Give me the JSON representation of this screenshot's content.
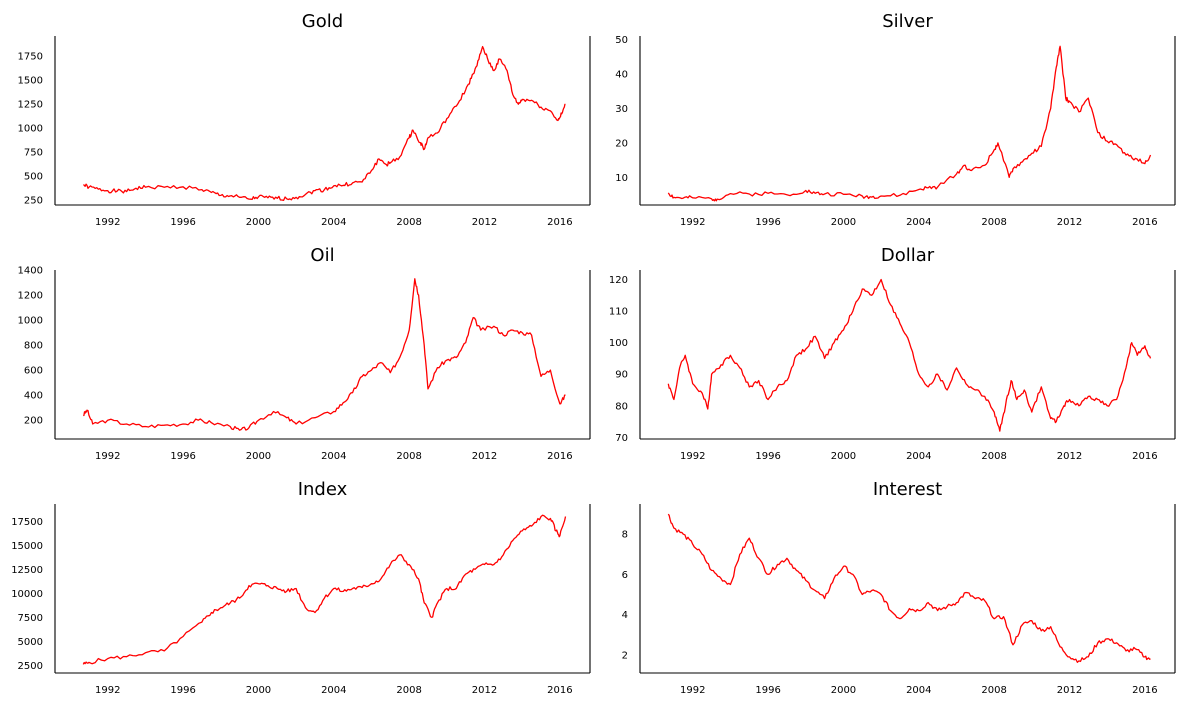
{
  "chart_data": [
    {
      "type": "line",
      "title": "Gold",
      "x_ticks": [
        "1992",
        "1996",
        "2000",
        "2004",
        "2008",
        "2012",
        "2016"
      ],
      "y_ticks": [
        "250",
        "500",
        "750",
        "1000",
        "1250",
        "1500",
        "1750"
      ],
      "xlim": [
        1989.2,
        2017.6
      ],
      "ylim": [
        200,
        1960
      ],
      "series": [
        {
          "color": "#ff0000",
          "x": [
            1990.7,
            1991.0,
            1991.5,
            1992.0,
            1992.5,
            1993.0,
            1993.5,
            1994.0,
            1995.0,
            1996.0,
            1997.0,
            1997.5,
            1998.0,
            1998.5,
            1999.0,
            1999.6,
            2000.0,
            2000.5,
            2001.0,
            2001.5,
            2002.0,
            2002.5,
            2003.0,
            2003.5,
            2004.0,
            2004.5,
            2005.0,
            2005.5,
            2006.0,
            2006.4,
            2006.8,
            2007.0,
            2007.5,
            2008.0,
            2008.2,
            2008.6,
            2008.8,
            2009.0,
            2009.5,
            2010.0,
            2010.5,
            2011.0,
            2011.3,
            2011.6,
            2011.9,
            2012.2,
            2012.5,
            2012.8,
            2013.2,
            2013.5,
            2013.8,
            2014.0,
            2014.5,
            2015.0,
            2015.5,
            2015.9,
            2016.1,
            2016.3
          ],
          "values": [
            410,
            385,
            365,
            350,
            345,
            340,
            375,
            385,
            385,
            390,
            360,
            330,
            300,
            295,
            280,
            260,
            285,
            275,
            270,
            265,
            280,
            310,
            350,
            360,
            400,
            405,
            430,
            440,
            560,
            680,
            620,
            640,
            700,
            900,
            980,
            850,
            780,
            900,
            950,
            1100,
            1230,
            1400,
            1520,
            1650,
            1850,
            1700,
            1600,
            1720,
            1600,
            1350,
            1250,
            1300,
            1290,
            1220,
            1180,
            1080,
            1150,
            1250
          ]
        }
      ]
    },
    {
      "type": "line",
      "title": "Silver",
      "x_ticks": [
        "1992",
        "1996",
        "2000",
        "2004",
        "2008",
        "2012",
        "2016"
      ],
      "y_ticks": [
        "10",
        "20",
        "30",
        "40",
        "50"
      ],
      "xlim": [
        1989.2,
        2017.6
      ],
      "ylim": [
        2,
        51
      ],
      "series": [
        {
          "color": "#ff0000",
          "x": [
            1990.7,
            1991.0,
            1991.5,
            1992.0,
            1993.0,
            1993.3,
            1994.0,
            1995.0,
            1996.0,
            1997.0,
            1998.0,
            1998.5,
            1999.0,
            2000.0,
            2001.0,
            2001.5,
            2002.0,
            2003.0,
            2004.0,
            2004.5,
            2005.0,
            2006.0,
            2006.4,
            2006.8,
            2007.5,
            2008.0,
            2008.2,
            2008.8,
            2009.0,
            2009.5,
            2010.0,
            2010.5,
            2011.0,
            2011.3,
            2011.5,
            2011.8,
            2012.0,
            2012.5,
            2013.0,
            2013.5,
            2014.0,
            2014.5,
            2015.0,
            2015.5,
            2016.0,
            2016.3
          ],
          "values": [
            5.5,
            4.2,
            4.0,
            4.1,
            3.8,
            3.7,
            5.3,
            5.2,
            5.4,
            5.0,
            6.2,
            5.4,
            5.2,
            5.1,
            4.6,
            4.3,
            4.6,
            4.8,
            6.5,
            7.0,
            7.2,
            11.0,
            13.5,
            12.0,
            13.5,
            18.0,
            20.0,
            10.0,
            12.5,
            14.5,
            17.0,
            19.0,
            30.0,
            42.0,
            48.0,
            33.0,
            32.0,
            29.0,
            33.0,
            23.0,
            20.5,
            19.5,
            16.5,
            15.5,
            14.0,
            16.5
          ]
        }
      ]
    },
    {
      "type": "line",
      "title": "Oil",
      "x_ticks": [
        "1992",
        "1996",
        "2000",
        "2004",
        "2008",
        "2012",
        "2016"
      ],
      "y_ticks": [
        "200",
        "400",
        "600",
        "800",
        "1000",
        "1200",
        "1400"
      ],
      "xlim": [
        1989.2,
        2017.6
      ],
      "ylim": [
        50,
        1400
      ],
      "series": [
        {
          "color": "#ff0000",
          "x": [
            1990.7,
            1990.9,
            1991.2,
            1992.0,
            1993.0,
            1994.0,
            1995.0,
            1996.0,
            1996.8,
            1997.5,
            1998.5,
            1999.0,
            1999.5,
            2000.0,
            2000.8,
            2001.5,
            2002.0,
            2003.0,
            2004.0,
            2004.5,
            2005.0,
            2005.5,
            2006.0,
            2006.5,
            2007.0,
            2007.5,
            2008.0,
            2008.3,
            2008.5,
            2008.8,
            2009.0,
            2009.5,
            2010.0,
            2010.5,
            2011.0,
            2011.4,
            2011.8,
            2012.5,
            2013.0,
            2013.5,
            2014.0,
            2014.5,
            2015.0,
            2015.5,
            2016.0,
            2016.3
          ],
          "values": [
            240,
            280,
            170,
            200,
            170,
            150,
            160,
            170,
            200,
            180,
            150,
            120,
            140,
            200,
            270,
            220,
            170,
            220,
            270,
            340,
            420,
            550,
            600,
            660,
            580,
            700,
            920,
            1330,
            1200,
            800,
            450,
            620,
            680,
            700,
            820,
            1020,
            920,
            950,
            880,
            920,
            900,
            880,
            550,
            600,
            330,
            400
          ]
        }
      ]
    },
    {
      "type": "line",
      "title": "Dollar",
      "x_ticks": [
        "1992",
        "1996",
        "2000",
        "2004",
        "2008",
        "2012",
        "2016"
      ],
      "y_ticks": [
        "70",
        "80",
        "90",
        "100",
        "110",
        "120"
      ],
      "xlim": [
        1989.2,
        2017.6
      ],
      "ylim": [
        69.5,
        123
      ],
      "series": [
        {
          "color": "#ff0000",
          "x": [
            1990.7,
            1991.0,
            1991.3,
            1991.6,
            1992.0,
            1992.5,
            1992.8,
            1993.0,
            1993.5,
            1994.0,
            1994.5,
            1995.0,
            1995.5,
            1996.0,
            1996.5,
            1997.0,
            1997.5,
            1998.0,
            1998.5,
            1999.0,
            1999.5,
            2000.0,
            2000.5,
            2001.0,
            2001.5,
            2002.0,
            2002.5,
            2003.0,
            2003.5,
            2004.0,
            2004.5,
            2005.0,
            2005.5,
            2006.0,
            2006.5,
            2007.0,
            2007.5,
            2008.0,
            2008.3,
            2008.6,
            2008.9,
            2009.2,
            2009.6,
            2010.0,
            2010.5,
            2011.0,
            2011.3,
            2011.7,
            2012.0,
            2012.5,
            2013.0,
            2013.5,
            2014.0,
            2014.5,
            2015.0,
            2015.3,
            2015.6,
            2016.0,
            2016.3
          ],
          "values": [
            87,
            82,
            92,
            96,
            87,
            84,
            79,
            90,
            93,
            96,
            92,
            86,
            88,
            82,
            86,
            88,
            96,
            98,
            102,
            95,
            100,
            104,
            110,
            117,
            115,
            120,
            112,
            106,
            100,
            90,
            86,
            90,
            85,
            92,
            87,
            85,
            83,
            78,
            72,
            80,
            88,
            82,
            85,
            78,
            86,
            76,
            75,
            80,
            82,
            80,
            83,
            82,
            80,
            82,
            92,
            100,
            96,
            99,
            95
          ]
        }
      ]
    },
    {
      "type": "line",
      "title": "Index",
      "x_ticks": [
        "1992",
        "1996",
        "2000",
        "2004",
        "2008",
        "2012",
        "2016"
      ],
      "y_ticks": [
        "2500",
        "5000",
        "7500",
        "10000",
        "12500",
        "15000",
        "17500"
      ],
      "xlim": [
        1989.2,
        2017.6
      ],
      "ylim": [
        1700,
        19300
      ],
      "series": [
        {
          "color": "#ff0000",
          "x": [
            1990.7,
            1991.0,
            1992.0,
            1993.0,
            1994.0,
            1995.0,
            1996.0,
            1997.0,
            1997.5,
            1998.0,
            1998.5,
            1999.0,
            1999.5,
            2000.0,
            2000.5,
            2001.0,
            2001.5,
            2002.0,
            2002.5,
            2003.0,
            2003.5,
            2004.0,
            2004.5,
            2005.0,
            2005.5,
            2006.0,
            2006.5,
            2007.0,
            2007.5,
            2008.0,
            2008.5,
            2008.8,
            2009.2,
            2009.5,
            2010.0,
            2010.5,
            2011.0,
            2011.5,
            2012.0,
            2012.5,
            2013.0,
            2013.5,
            2014.0,
            2014.5,
            2015.0,
            2015.5,
            2015.8,
            2016.0,
            2016.3
          ],
          "values": [
            2600,
            2800,
            3200,
            3400,
            3800,
            4000,
            5500,
            7000,
            8000,
            8500,
            9000,
            9500,
            10800,
            11000,
            10800,
            10500,
            10200,
            10500,
            8500,
            8000,
            9500,
            10500,
            10200,
            10500,
            10600,
            11000,
            11500,
            13000,
            14000,
            13000,
            11500,
            9000,
            7500,
            9000,
            10500,
            10500,
            12000,
            12500,
            13000,
            13000,
            14000,
            15500,
            16500,
            17000,
            18000,
            17800,
            16500,
            16000,
            18000
          ]
        }
      ]
    },
    {
      "type": "line",
      "title": "Interest",
      "x_ticks": [
        "1992",
        "1996",
        "2000",
        "2004",
        "2008",
        "2012",
        "2016"
      ],
      "y_ticks": [
        "2",
        "4",
        "6",
        "8"
      ],
      "xlim": [
        1989.2,
        2017.6
      ],
      "ylim": [
        1.1,
        9.5
      ],
      "series": [
        {
          "color": "#ff0000",
          "x": [
            1990.7,
            1991.0,
            1991.5,
            1992.0,
            1992.5,
            1993.0,
            1993.5,
            1994.0,
            1994.5,
            1995.0,
            1995.5,
            1996.0,
            1996.5,
            1997.0,
            1997.5,
            1998.0,
            1998.5,
            1999.0,
            1999.5,
            2000.0,
            2000.5,
            2001.0,
            2001.5,
            2002.0,
            2002.5,
            2003.0,
            2003.5,
            2004.0,
            2004.5,
            2005.0,
            2005.5,
            2006.0,
            2006.5,
            2007.0,
            2007.5,
            2008.0,
            2008.5,
            2009.0,
            2009.5,
            2010.0,
            2010.5,
            2011.0,
            2011.5,
            2012.0,
            2012.5,
            2013.0,
            2013.5,
            2014.0,
            2014.5,
            2015.0,
            2015.5,
            2016.0,
            2016.3
          ],
          "values": [
            9.0,
            8.3,
            8.0,
            7.5,
            7.0,
            6.2,
            5.8,
            5.5,
            7.0,
            7.8,
            6.8,
            6.0,
            6.5,
            6.8,
            6.2,
            5.7,
            5.2,
            4.8,
            5.8,
            6.4,
            6.0,
            5.0,
            5.2,
            5.0,
            4.2,
            3.8,
            4.3,
            4.2,
            4.6,
            4.2,
            4.4,
            4.6,
            5.1,
            4.8,
            4.7,
            3.8,
            3.9,
            2.5,
            3.5,
            3.7,
            3.2,
            3.4,
            2.4,
            1.9,
            1.7,
            1.9,
            2.6,
            2.8,
            2.6,
            2.2,
            2.3,
            1.9,
            1.8
          ]
        }
      ]
    }
  ]
}
